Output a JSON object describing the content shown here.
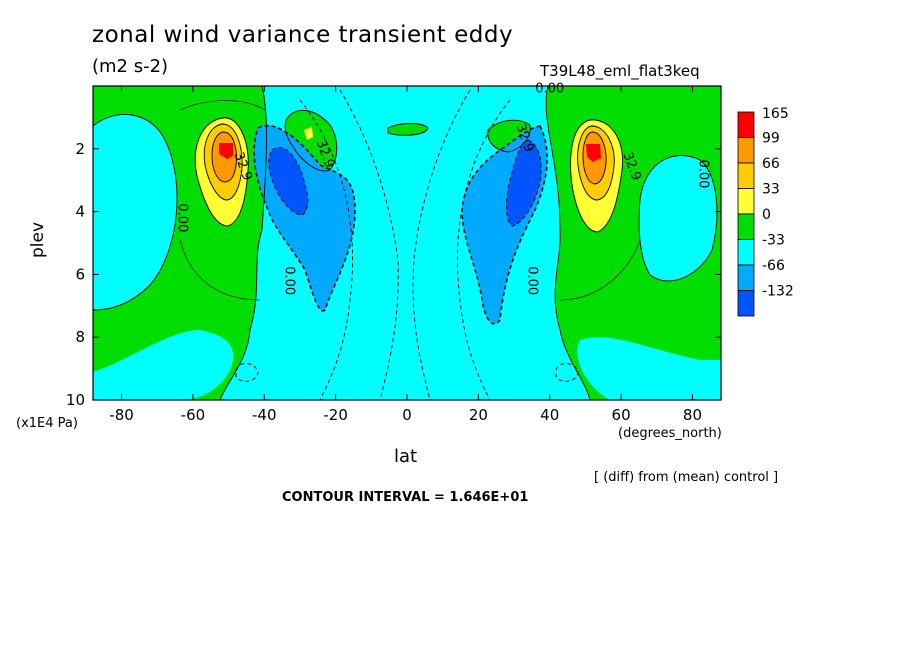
{
  "title": "zonal wind variance transient eddy",
  "units": "(m2 s-2)",
  "run_id": "T39L48_eml_flat3keq",
  "footer": {
    "diff_note": "[ (diff) from (mean) control ]",
    "contour_interval": "CONTOUR INTERVAL = 1.646E+01"
  },
  "colors": {
    "band_165_up": "#ff0000",
    "band_99_165": "#ff9900",
    "band_66_99": "#ffcc00",
    "band_33_66": "#ffff33",
    "band_0_33": "#00dd00",
    "band_m33_0": "#00ffff",
    "band_m66_m33": "#00aaff",
    "band_m132_m66": "#0055ff"
  },
  "chart_data": {
    "type": "heatmap",
    "xlabel": "lat",
    "xunits": "(degrees_north)",
    "ylabel": "plev",
    "yunits": "(x1E4 Pa)",
    "xlim": [
      -88,
      88
    ],
    "ylim": [
      10,
      0
    ],
    "x_ticks": [
      -80,
      -60,
      -40,
      -20,
      0,
      20,
      40,
      60,
      80
    ],
    "y_ticks": [
      2,
      4,
      6,
      8,
      10
    ],
    "colorbar": {
      "levels": [
        "165",
        "99",
        "66",
        "33",
        "0",
        "-33",
        "-66",
        "-132"
      ],
      "colors": [
        "#ff0000",
        "#ff9900",
        "#ffcc00",
        "#ffff33",
        "#00dd00",
        "#00ffff",
        "#00aaff",
        "#0055ff"
      ]
    },
    "contour_labels": [
      {
        "text": "0.00",
        "lat": 40,
        "plev": 0.2
      },
      {
        "text": "32.9",
        "lat": -47,
        "plev": 2.6
      },
      {
        "text": "32.9",
        "lat": 62,
        "plev": 2.6
      },
      {
        "text": "32.9",
        "lat": -24,
        "plev": 2.2
      },
      {
        "text": "32.9",
        "lat": 32,
        "plev": 1.7
      },
      {
        "text": "0.00",
        "lat": -64,
        "plev": 4.2
      },
      {
        "text": "0.00",
        "lat": 82,
        "plev": 2.8
      },
      {
        "text": "0.00",
        "lat": -34,
        "plev": 6.2
      },
      {
        "text": "0.00",
        "lat": 34,
        "plev": 6.2
      }
    ],
    "features": [
      {
        "region": "SH jet core",
        "lat": -51,
        "plev": 2.2,
        "value_range": "above 165"
      },
      {
        "region": "NH jet core",
        "lat": 52,
        "plev": 2.2,
        "value_range": "above 165"
      },
      {
        "region": "SH subtropical minimum",
        "lat": -33,
        "plev": 3.2,
        "value_range": "-132 to -66"
      },
      {
        "region": "NH subtropical minimum",
        "lat": 35,
        "plev": 3.4,
        "value_range": "-132 to -66"
      }
    ]
  }
}
